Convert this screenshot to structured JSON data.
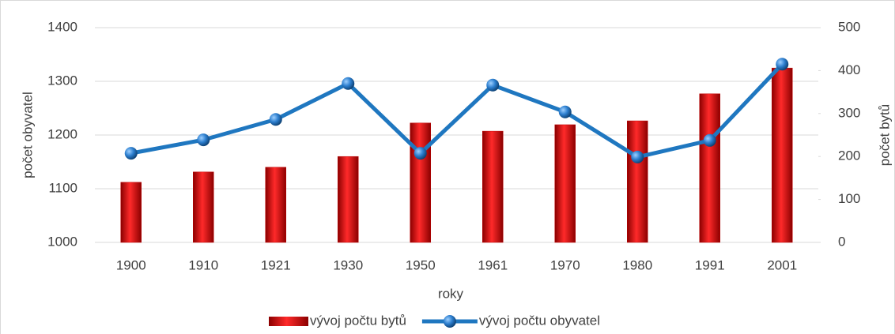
{
  "chart_data": {
    "type": "combo",
    "x_label": "roky",
    "y_label": "počet obyvatel",
    "y2_label": "počet bytů",
    "categories": [
      "1900",
      "1910",
      "1921",
      "1930",
      "1950",
      "1961",
      "1970",
      "1980",
      "1991",
      "2001"
    ],
    "series": [
      {
        "name": "vývoj počtu bytů",
        "type": "bar",
        "axis": "y2",
        "color": "#c00000",
        "values": [
          140,
          164,
          175,
          200,
          278,
          259,
          274,
          283,
          346,
          406
        ]
      },
      {
        "name": "vývoj počtu obyvatel",
        "type": "line",
        "axis": "y",
        "color": "#1f77c0",
        "values": [
          1166,
          1191,
          1229,
          1296,
          1166,
          1293,
          1243,
          1159,
          1190,
          1332
        ]
      }
    ],
    "ylim": [
      1000,
      1400
    ],
    "yticks": [
      1000,
      1100,
      1200,
      1300,
      1400
    ],
    "y2lim": [
      0,
      500
    ],
    "y2ticks": [
      0,
      100,
      200,
      300,
      400,
      500
    ],
    "grid": true,
    "legend": "bottom"
  }
}
